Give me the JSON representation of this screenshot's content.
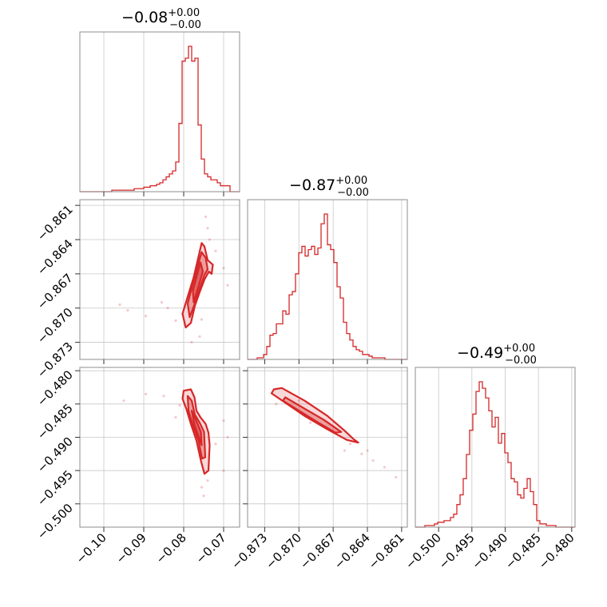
{
  "chart_data": {
    "type": "corner",
    "color": "#d62728",
    "parameters": [
      {
        "title_value": "−0.08",
        "title_plus": "+0.00",
        "title_minus": "−0.00",
        "range": [
          -0.106,
          -0.066
        ],
        "ticks": [
          -0.1,
          -0.09,
          -0.08,
          -0.07
        ],
        "tick_labels": [
          "−0.10",
          "−0.09",
          "−0.08",
          "−0.07"
        ],
        "hist_start": -0.106,
        "hist_step": 0.0008,
        "hist": [
          0,
          0,
          0,
          0,
          0,
          0,
          0,
          0,
          0,
          0,
          1,
          1,
          1,
          1,
          1,
          1,
          1,
          2,
          2,
          2,
          3,
          3,
          4,
          4,
          5,
          6,
          8,
          10,
          12,
          14,
          20,
          46,
          88,
          90,
          98,
          88,
          90,
          45,
          22,
          12,
          10,
          8,
          8,
          6,
          4,
          4,
          4,
          0,
          0,
          0
        ]
      },
      {
        "title_value": "−0.87",
        "title_plus": "+0.00",
        "title_minus": "−0.00",
        "range": [
          -0.8745,
          -0.8605
        ],
        "ticks": [
          -0.873,
          -0.87,
          -0.867,
          -0.864,
          -0.861
        ],
        "tick_labels": [
          "−0.873",
          "−0.870",
          "−0.867",
          "−0.864",
          "−0.861"
        ],
        "hist_start": -0.8745,
        "hist_step": 0.00028,
        "hist": [
          0,
          0,
          0,
          1,
          1,
          3,
          8,
          15,
          16,
          22,
          22,
          30,
          28,
          40,
          42,
          53,
          66,
          70,
          64,
          68,
          70,
          65,
          69,
          84,
          90,
          71,
          68,
          60,
          45,
          38,
          23,
          16,
          12,
          8,
          6,
          5,
          3,
          3,
          2,
          1,
          1,
          1,
          1,
          0,
          0,
          0,
          0,
          0,
          0,
          0
        ]
      },
      {
        "title_value": "−0.49",
        "title_plus": "+0.00",
        "title_minus": "−0.00",
        "range": [
          -0.5035,
          -0.4795
        ],
        "ticks": [
          -0.5,
          -0.495,
          -0.49,
          -0.485,
          -0.48
        ],
        "tick_labels": [
          "−0.500",
          "−0.495",
          "−0.490",
          "−0.485",
          "−0.480"
        ],
        "hist_start": -0.5035,
        "hist_step": 0.00048,
        "hist": [
          0,
          0,
          0,
          1,
          1,
          1,
          2,
          3,
          3,
          4,
          4,
          6,
          8,
          14,
          20,
          30,
          45,
          60,
          70,
          84,
          90,
          86,
          80,
          72,
          62,
          68,
          52,
          58,
          46,
          40,
          30,
          28,
          20,
          18,
          24,
          30,
          22,
          14,
          4,
          2,
          2,
          1,
          1,
          1,
          0,
          0,
          0,
          0,
          0,
          0
        ]
      }
    ],
    "pairs": [
      {
        "row": 1,
        "col": 0,
        "contours": [
          [
            [
              -0.0795,
              -0.8717
            ],
            [
              -0.0782,
              -0.8713
            ],
            [
              -0.0772,
              -0.8698
            ],
            [
              -0.076,
              -0.8686
            ],
            [
              -0.0748,
              -0.8675
            ],
            [
              -0.0737,
              -0.8668
            ],
            [
              -0.073,
              -0.867
            ],
            [
              -0.0727,
              -0.8662
            ],
            [
              -0.074,
              -0.8658
            ],
            [
              -0.0748,
              -0.8646
            ],
            [
              -0.0755,
              -0.8643
            ],
            [
              -0.0765,
              -0.8658
            ],
            [
              -0.0775,
              -0.8673
            ],
            [
              -0.079,
              -0.869
            ],
            [
              -0.0803,
              -0.8705
            ]
          ],
          [
            [
              -0.0785,
              -0.8708
            ],
            [
              -0.0772,
              -0.8696
            ],
            [
              -0.076,
              -0.8683
            ],
            [
              -0.0748,
              -0.8671
            ],
            [
              -0.074,
              -0.8666
            ],
            [
              -0.0745,
              -0.8656
            ],
            [
              -0.0755,
              -0.8651
            ],
            [
              -0.0765,
              -0.8663
            ],
            [
              -0.0778,
              -0.868
            ],
            [
              -0.079,
              -0.8696
            ]
          ],
          [
            [
              -0.0775,
              -0.8695
            ],
            [
              -0.0762,
              -0.868
            ],
            [
              -0.0752,
              -0.8668
            ],
            [
              -0.0758,
              -0.866
            ],
            [
              -0.0766,
              -0.867
            ],
            [
              -0.0777,
              -0.8685
            ]
          ]
        ],
        "points": [
          [
            -0.0895,
            -0.8707
          ],
          [
            -0.084,
            -0.87
          ],
          [
            -0.082,
            -0.8711
          ],
          [
            -0.0855,
            -0.8695
          ],
          [
            -0.069,
            -0.868
          ],
          [
            -0.074,
            -0.863
          ],
          [
            -0.0745,
            -0.862
          ],
          [
            -0.076,
            -0.8725
          ],
          [
            -0.078,
            -0.873
          ],
          [
            -0.096,
            -0.8697
          ],
          [
            -0.094,
            -0.8702
          ],
          [
            -0.07,
            -0.8665
          ],
          [
            -0.0755,
            -0.871
          ],
          [
            -0.0735,
            -0.864
          ],
          [
            -0.072,
            -0.865
          ]
        ]
      },
      {
        "row": 2,
        "col": 0,
        "contours": [
          [
            [
              -0.08,
              -0.483
            ],
            [
              -0.0782,
              -0.4828
            ],
            [
              -0.0773,
              -0.484
            ],
            [
              -0.0768,
              -0.486
            ],
            [
              -0.0758,
              -0.487
            ],
            [
              -0.0745,
              -0.488
            ],
            [
              -0.0738,
              -0.4893
            ],
            [
              -0.0735,
              -0.4912
            ],
            [
              -0.0738,
              -0.495
            ],
            [
              -0.0748,
              -0.4955
            ],
            [
              -0.0757,
              -0.4935
            ],
            [
              -0.0768,
              -0.4905
            ],
            [
              -0.0782,
              -0.488
            ],
            [
              -0.0793,
              -0.4858
            ],
            [
              -0.0803,
              -0.4842
            ]
          ],
          [
            [
              -0.079,
              -0.4838
            ],
            [
              -0.078,
              -0.4845
            ],
            [
              -0.0772,
              -0.4866
            ],
            [
              -0.076,
              -0.4878
            ],
            [
              -0.0749,
              -0.4892
            ],
            [
              -0.0746,
              -0.493
            ],
            [
              -0.0754,
              -0.4932
            ],
            [
              -0.0763,
              -0.4905
            ],
            [
              -0.0777,
              -0.4882
            ],
            [
              -0.0788,
              -0.486
            ]
          ],
          [
            [
              -0.078,
              -0.486
            ],
            [
              -0.0768,
              -0.4876
            ],
            [
              -0.0757,
              -0.4892
            ],
            [
              -0.0755,
              -0.4912
            ],
            [
              -0.0762,
              -0.49
            ],
            [
              -0.0773,
              -0.4882
            ]
          ]
        ],
        "points": [
          [
            -0.0895,
            -0.4835
          ],
          [
            -0.082,
            -0.487
          ],
          [
            -0.085,
            -0.4838
          ],
          [
            -0.069,
            -0.49
          ],
          [
            -0.072,
            -0.491
          ],
          [
            -0.07,
            -0.4875
          ],
          [
            -0.0755,
            -0.4975
          ],
          [
            -0.075,
            -0.4988
          ],
          [
            -0.095,
            -0.4845
          ],
          [
            -0.07,
            -0.495
          ],
          [
            -0.074,
            -0.4965
          ],
          [
            -0.081,
            -0.4852
          ]
        ]
      },
      {
        "row": 2,
        "col": 1,
        "contours": [
          [
            [
              -0.8722,
              -0.4828
            ],
            [
              -0.8715,
              -0.4826
            ],
            [
              -0.8695,
              -0.4845
            ],
            [
              -0.8675,
              -0.4868
            ],
            [
              -0.866,
              -0.489
            ],
            [
              -0.8652,
              -0.4903
            ],
            [
              -0.8648,
              -0.4908
            ],
            [
              -0.8658,
              -0.4904
            ],
            [
              -0.8675,
              -0.4888
            ],
            [
              -0.8695,
              -0.4868
            ],
            [
              -0.8712,
              -0.4848
            ],
            [
              -0.8724,
              -0.4834
            ]
          ],
          [
            [
              -0.8712,
              -0.484
            ],
            [
              -0.8695,
              -0.4857
            ],
            [
              -0.8678,
              -0.4874
            ],
            [
              -0.8663,
              -0.4892
            ],
            [
              -0.8668,
              -0.4893
            ],
            [
              -0.8683,
              -0.4878
            ],
            [
              -0.87,
              -0.486
            ],
            [
              -0.8714,
              -0.4845
            ]
          ]
        ],
        "points": [
          [
            -0.864,
            -0.492
          ],
          [
            -0.8635,
            -0.4935
          ],
          [
            -0.8625,
            -0.4945
          ],
          [
            -0.8615,
            -0.496
          ],
          [
            -0.87,
            -0.4845
          ],
          [
            -0.869,
            -0.4878
          ],
          [
            -0.866,
            -0.492
          ],
          [
            -0.872,
            -0.485
          ],
          [
            -0.8655,
            -0.491
          ],
          [
            -0.8645,
            -0.4925
          ]
        ]
      }
    ]
  }
}
